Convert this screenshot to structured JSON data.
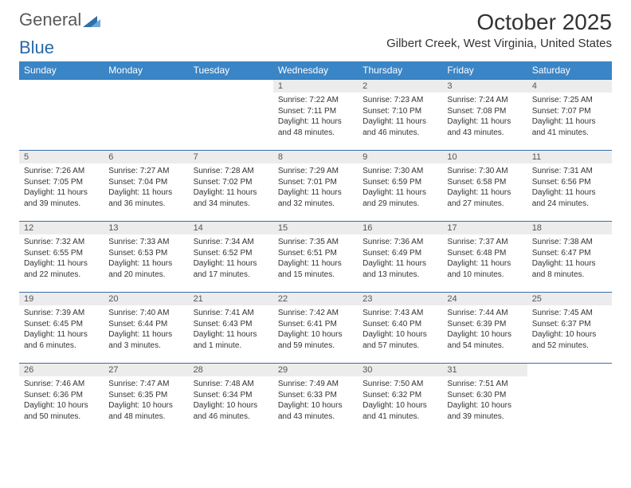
{
  "logo": {
    "text1": "General",
    "text2": "Blue"
  },
  "title": "October 2025",
  "location": "Gilbert Creek, West Virginia, United States",
  "header_bg": "#3a85c6",
  "header_fg": "#ffffff",
  "daynum_bg": "#ececec",
  "border_color": "#3a6ea5",
  "days_of_week": [
    "Sunday",
    "Monday",
    "Tuesday",
    "Wednesday",
    "Thursday",
    "Friday",
    "Saturday"
  ],
  "weeks": [
    [
      null,
      null,
      null,
      {
        "n": "1",
        "sr": "7:22 AM",
        "ss": "7:11 PM",
        "dl": "11 hours and 48 minutes."
      },
      {
        "n": "2",
        "sr": "7:23 AM",
        "ss": "7:10 PM",
        "dl": "11 hours and 46 minutes."
      },
      {
        "n": "3",
        "sr": "7:24 AM",
        "ss": "7:08 PM",
        "dl": "11 hours and 43 minutes."
      },
      {
        "n": "4",
        "sr": "7:25 AM",
        "ss": "7:07 PM",
        "dl": "11 hours and 41 minutes."
      }
    ],
    [
      {
        "n": "5",
        "sr": "7:26 AM",
        "ss": "7:05 PM",
        "dl": "11 hours and 39 minutes."
      },
      {
        "n": "6",
        "sr": "7:27 AM",
        "ss": "7:04 PM",
        "dl": "11 hours and 36 minutes."
      },
      {
        "n": "7",
        "sr": "7:28 AM",
        "ss": "7:02 PM",
        "dl": "11 hours and 34 minutes."
      },
      {
        "n": "8",
        "sr": "7:29 AM",
        "ss": "7:01 PM",
        "dl": "11 hours and 32 minutes."
      },
      {
        "n": "9",
        "sr": "7:30 AM",
        "ss": "6:59 PM",
        "dl": "11 hours and 29 minutes."
      },
      {
        "n": "10",
        "sr": "7:30 AM",
        "ss": "6:58 PM",
        "dl": "11 hours and 27 minutes."
      },
      {
        "n": "11",
        "sr": "7:31 AM",
        "ss": "6:56 PM",
        "dl": "11 hours and 24 minutes."
      }
    ],
    [
      {
        "n": "12",
        "sr": "7:32 AM",
        "ss": "6:55 PM",
        "dl": "11 hours and 22 minutes."
      },
      {
        "n": "13",
        "sr": "7:33 AM",
        "ss": "6:53 PM",
        "dl": "11 hours and 20 minutes."
      },
      {
        "n": "14",
        "sr": "7:34 AM",
        "ss": "6:52 PM",
        "dl": "11 hours and 17 minutes."
      },
      {
        "n": "15",
        "sr": "7:35 AM",
        "ss": "6:51 PM",
        "dl": "11 hours and 15 minutes."
      },
      {
        "n": "16",
        "sr": "7:36 AM",
        "ss": "6:49 PM",
        "dl": "11 hours and 13 minutes."
      },
      {
        "n": "17",
        "sr": "7:37 AM",
        "ss": "6:48 PM",
        "dl": "11 hours and 10 minutes."
      },
      {
        "n": "18",
        "sr": "7:38 AM",
        "ss": "6:47 PM",
        "dl": "11 hours and 8 minutes."
      }
    ],
    [
      {
        "n": "19",
        "sr": "7:39 AM",
        "ss": "6:45 PM",
        "dl": "11 hours and 6 minutes."
      },
      {
        "n": "20",
        "sr": "7:40 AM",
        "ss": "6:44 PM",
        "dl": "11 hours and 3 minutes."
      },
      {
        "n": "21",
        "sr": "7:41 AM",
        "ss": "6:43 PM",
        "dl": "11 hours and 1 minute."
      },
      {
        "n": "22",
        "sr": "7:42 AM",
        "ss": "6:41 PM",
        "dl": "10 hours and 59 minutes."
      },
      {
        "n": "23",
        "sr": "7:43 AM",
        "ss": "6:40 PM",
        "dl": "10 hours and 57 minutes."
      },
      {
        "n": "24",
        "sr": "7:44 AM",
        "ss": "6:39 PM",
        "dl": "10 hours and 54 minutes."
      },
      {
        "n": "25",
        "sr": "7:45 AM",
        "ss": "6:37 PM",
        "dl": "10 hours and 52 minutes."
      }
    ],
    [
      {
        "n": "26",
        "sr": "7:46 AM",
        "ss": "6:36 PM",
        "dl": "10 hours and 50 minutes."
      },
      {
        "n": "27",
        "sr": "7:47 AM",
        "ss": "6:35 PM",
        "dl": "10 hours and 48 minutes."
      },
      {
        "n": "28",
        "sr": "7:48 AM",
        "ss": "6:34 PM",
        "dl": "10 hours and 46 minutes."
      },
      {
        "n": "29",
        "sr": "7:49 AM",
        "ss": "6:33 PM",
        "dl": "10 hours and 43 minutes."
      },
      {
        "n": "30",
        "sr": "7:50 AM",
        "ss": "6:32 PM",
        "dl": "10 hours and 41 minutes."
      },
      {
        "n": "31",
        "sr": "7:51 AM",
        "ss": "6:30 PM",
        "dl": "10 hours and 39 minutes."
      },
      null
    ]
  ],
  "labels": {
    "sunrise": "Sunrise:",
    "sunset": "Sunset:",
    "daylight": "Daylight:"
  }
}
